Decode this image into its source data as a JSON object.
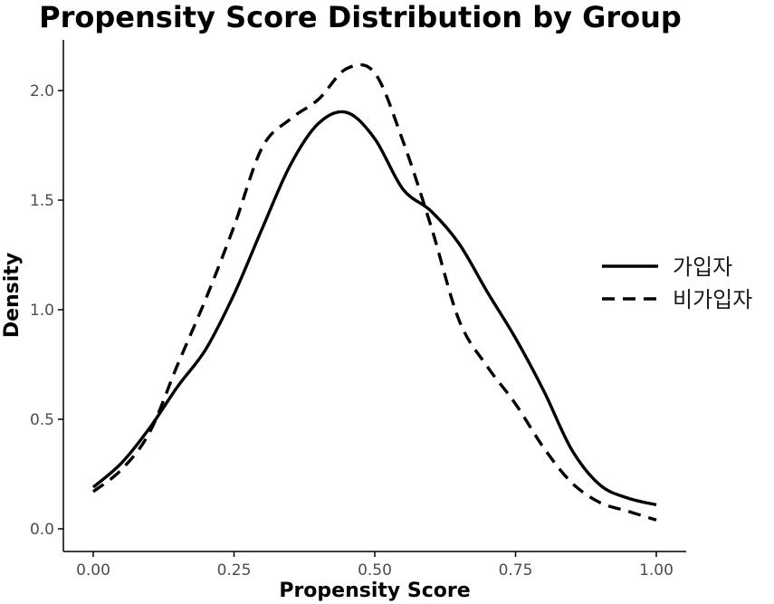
{
  "chart_data": {
    "type": "line",
    "title": "Propensity Score Distribution by Group",
    "xlabel": "Propensity Score",
    "ylabel": "Density",
    "xlim": [
      -0.05,
      1.05
    ],
    "ylim": [
      -0.1,
      2.2
    ],
    "x_ticks": [
      0.0,
      0.25,
      0.5,
      0.75,
      1.0
    ],
    "x_tick_labels": [
      "0.00",
      "0.25",
      "0.50",
      "0.75",
      "1.00"
    ],
    "y_ticks": [
      0.0,
      0.5,
      1.0,
      1.5,
      2.0
    ],
    "y_tick_labels": [
      "0.0",
      "0.5",
      "1.0",
      "1.5",
      "2.0"
    ],
    "grid": false,
    "legend_position": "right",
    "series": [
      {
        "name": "가입자",
        "line_style": "solid",
        "color": "#000000",
        "points": [
          [
            0.0,
            0.19
          ],
          [
            0.05,
            0.3
          ],
          [
            0.1,
            0.46
          ],
          [
            0.15,
            0.65
          ],
          [
            0.2,
            0.82
          ],
          [
            0.25,
            1.07
          ],
          [
            0.3,
            1.37
          ],
          [
            0.35,
            1.66
          ],
          [
            0.4,
            1.85
          ],
          [
            0.45,
            1.9
          ],
          [
            0.5,
            1.78
          ],
          [
            0.55,
            1.55
          ],
          [
            0.6,
            1.45
          ],
          [
            0.65,
            1.3
          ],
          [
            0.7,
            1.08
          ],
          [
            0.75,
            0.87
          ],
          [
            0.8,
            0.63
          ],
          [
            0.85,
            0.36
          ],
          [
            0.9,
            0.2
          ],
          [
            0.95,
            0.14
          ],
          [
            1.0,
            0.11
          ]
        ]
      },
      {
        "name": "비가입자",
        "line_style": "dashed",
        "color": "#000000",
        "points": [
          [
            0.0,
            0.17
          ],
          [
            0.05,
            0.27
          ],
          [
            0.1,
            0.44
          ],
          [
            0.15,
            0.75
          ],
          [
            0.2,
            1.05
          ],
          [
            0.25,
            1.38
          ],
          [
            0.3,
            1.74
          ],
          [
            0.35,
            1.87
          ],
          [
            0.4,
            1.96
          ],
          [
            0.45,
            2.1
          ],
          [
            0.5,
            2.08
          ],
          [
            0.55,
            1.77
          ],
          [
            0.6,
            1.38
          ],
          [
            0.65,
            0.95
          ],
          [
            0.7,
            0.74
          ],
          [
            0.75,
            0.57
          ],
          [
            0.8,
            0.37
          ],
          [
            0.85,
            0.21
          ],
          [
            0.9,
            0.12
          ],
          [
            0.95,
            0.08
          ],
          [
            1.0,
            0.04
          ]
        ]
      }
    ]
  }
}
